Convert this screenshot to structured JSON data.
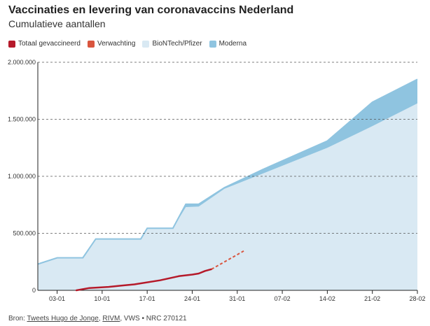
{
  "title": "Vaccinaties en levering van coronavaccins Nederland",
  "subtitle": "Cumulatieve aantallen",
  "legend": [
    {
      "label": "Totaal gevaccineerd",
      "color": "#b51a2a"
    },
    {
      "label": "Verwachting",
      "color": "#d9553e"
    },
    {
      "label": "BioNTech/Pfizer",
      "color": "#d9e9f3"
    },
    {
      "label": "Moderna",
      "color": "#8fc4e0"
    }
  ],
  "source": {
    "prefix": "Bron: ",
    "link1": "Tweets Hugo de Jonge",
    "sep1": ", ",
    "link2": "RIVM",
    "suffix": ", VWS • NRC 270121"
  },
  "chart_data": {
    "type": "area",
    "ylim": [
      0,
      2000000
    ],
    "yticks": [
      {
        "value": 0,
        "label": "0"
      },
      {
        "value": 500000,
        "label": "500.000"
      },
      {
        "value": 1000000,
        "label": "1.000.000"
      },
      {
        "value": 1500000,
        "label": "1.500.000"
      },
      {
        "value": 2000000,
        "label": "2.000.000"
      }
    ],
    "xlim": [
      "2020-12-31",
      "2021-02-28"
    ],
    "xticks": [
      {
        "date": "2021-01-03",
        "label": "03-01"
      },
      {
        "date": "2021-01-10",
        "label": "10-01"
      },
      {
        "date": "2021-01-17",
        "label": "17-01"
      },
      {
        "date": "2021-01-24",
        "label": "24-01"
      },
      {
        "date": "2021-01-31",
        "label": "31-01"
      },
      {
        "date": "2021-02-07",
        "label": "07-02"
      },
      {
        "date": "2021-02-14",
        "label": "14-02"
      },
      {
        "date": "2021-02-21",
        "label": "21-02"
      },
      {
        "date": "2021-02-28",
        "label": "28-02"
      }
    ],
    "series": [
      {
        "name": "BioNTech/Pfizer",
        "color": "#d9e9f3",
        "points": [
          [
            "2020-12-31",
            230000
          ],
          [
            "2021-01-03",
            285000
          ],
          [
            "2021-01-07",
            285000
          ],
          [
            "2021-01-09",
            450000
          ],
          [
            "2021-01-16",
            450000
          ],
          [
            "2021-01-17",
            545000
          ],
          [
            "2021-01-21",
            545000
          ],
          [
            "2021-01-23",
            730000
          ],
          [
            "2021-01-25",
            735000
          ],
          [
            "2021-01-29",
            890000
          ],
          [
            "2021-02-14",
            1250000
          ],
          [
            "2021-02-21",
            1440000
          ],
          [
            "2021-02-28",
            1640000
          ]
        ]
      },
      {
        "name": "Moderna",
        "color": "#8fc4e0",
        "points": [
          [
            "2020-12-31",
            230000
          ],
          [
            "2021-01-03",
            285000
          ],
          [
            "2021-01-07",
            285000
          ],
          [
            "2021-01-09",
            450000
          ],
          [
            "2021-01-16",
            450000
          ],
          [
            "2021-01-17",
            545000
          ],
          [
            "2021-01-21",
            545000
          ],
          [
            "2021-01-23",
            755000
          ],
          [
            "2021-01-25",
            755000
          ],
          [
            "2021-01-29",
            900000
          ],
          [
            "2021-02-04",
            1060000
          ],
          [
            "2021-02-14",
            1310000
          ],
          [
            "2021-02-21",
            1650000
          ],
          [
            "2021-02-28",
            1850000
          ]
        ]
      },
      {
        "name": "Totaal gevaccineerd",
        "color": "#b51a2a",
        "points": [
          [
            "2021-01-06",
            0
          ],
          [
            "2021-01-08",
            20000
          ],
          [
            "2021-01-11",
            30000
          ],
          [
            "2021-01-13",
            42000
          ],
          [
            "2021-01-15",
            52000
          ],
          [
            "2021-01-19",
            88000
          ],
          [
            "2021-01-22",
            125000
          ],
          [
            "2021-01-24",
            138000
          ],
          [
            "2021-01-25",
            147000
          ],
          [
            "2021-01-26",
            170000
          ],
          [
            "2021-01-27",
            185000
          ]
        ]
      },
      {
        "name": "Verwachting",
        "color": "#d9553e",
        "points": [
          [
            "2021-01-27",
            185000
          ],
          [
            "2021-02-01",
            345000
          ]
        ]
      }
    ]
  }
}
